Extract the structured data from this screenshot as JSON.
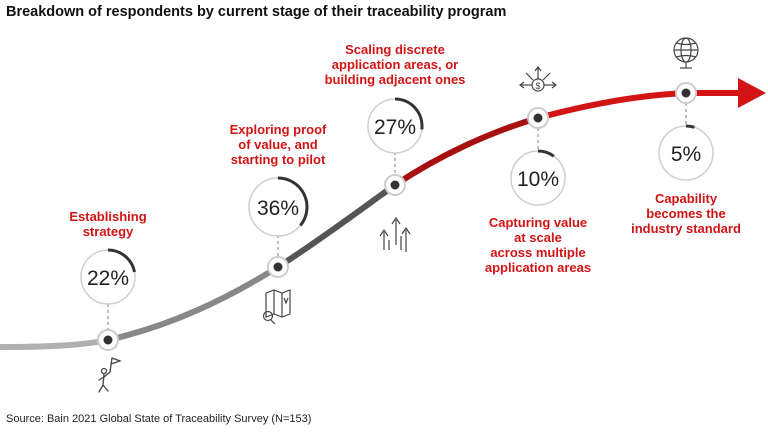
{
  "title": "Breakdown of respondents by current stage of their traceability program",
  "source": "Source: Bain 2021 Global State of Traceability Survey (N=153)",
  "stages": [
    {
      "label": "Establishing\nstrategy",
      "percent_label": "22%",
      "value": 22,
      "icon": "flag-person-icon"
    },
    {
      "label": "Exploring proof\nof value, and\nstarting to pilot",
      "percent_label": "36%",
      "value": 36,
      "icon": "map-magnifier-icon"
    },
    {
      "label": "Scaling discrete\napplication areas, or\nbuilding adjacent ones",
      "percent_label": "27%",
      "value": 27,
      "icon": "growth-arrows-icon"
    },
    {
      "label": "Capturing value\nat scale\nacross multiple\napplication areas",
      "percent_label": "10%",
      "value": 10,
      "icon": "dollar-arrows-icon"
    },
    {
      "label": "Capability\nbecomes the\nindustry standard",
      "percent_label": "5%",
      "value": 5,
      "icon": "globe-icon"
    }
  ],
  "colors": {
    "accent": "#d21414",
    "dark_red": "#a81010",
    "grey_light": "#b0b0b0",
    "grey_mid": "#888888",
    "grey_dark": "#555555",
    "ring": "#cccccc",
    "arc": "#333333"
  }
}
